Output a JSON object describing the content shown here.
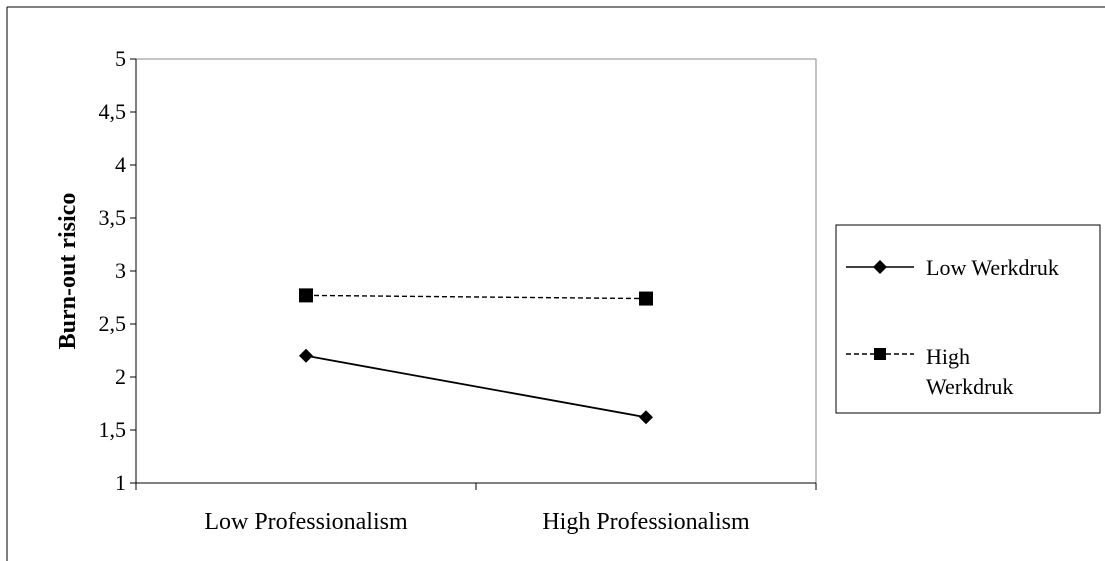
{
  "chart_data": {
    "type": "line",
    "categories": [
      "Low Professionalism",
      "High Professionalism"
    ],
    "series": [
      {
        "name": "Low Werkdruk",
        "values": [
          2.2,
          1.62
        ],
        "line_style": "solid",
        "marker": "diamond",
        "color": "#000000"
      },
      {
        "name": "High Werkdruk",
        "values": [
          2.77,
          2.74
        ],
        "line_style": "dashed",
        "marker": "square",
        "color": "#000000"
      }
    ],
    "ylabel": "Burn-out risico",
    "xlabel": "",
    "ylim": [
      1,
      5
    ],
    "yticks": [
      "1",
      "1,5",
      "2",
      "2,5",
      "3",
      "3,5",
      "4",
      "4,5",
      "5"
    ],
    "grid": false,
    "legend_position": "right",
    "legend": {
      "low_label": "Low Werkdruk",
      "high_label_line1": "High",
      "high_label_line2": "Werkdruk"
    }
  }
}
